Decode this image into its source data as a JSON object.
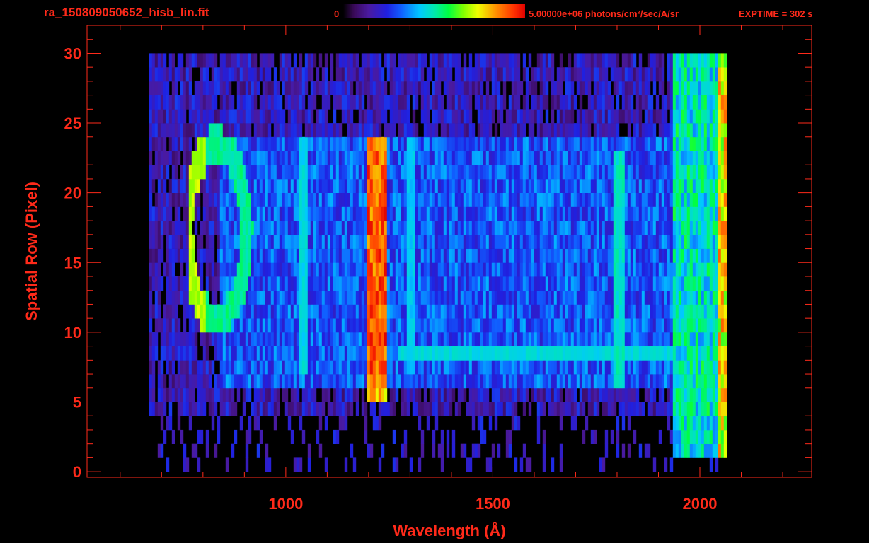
{
  "header": {
    "file_title": "ra_150809050652_hisb_lin.fit",
    "colorbar_min": "0",
    "colorbar_max_label": "5.00000e+06 photons/cm²/sec/A/sr",
    "exptime": "EXPTIME = 302 s"
  },
  "colors": {
    "axis": "#ff2a1a",
    "background": "#000000"
  },
  "chart_data": {
    "type": "heatmap",
    "xlabel": "Wavelength (Å)",
    "ylabel": "Spatial Row (Pixel)",
    "xlim": [
      520,
      2270
    ],
    "ylim": [
      -0.4,
      32
    ],
    "xticks": [
      1000,
      1500,
      2000
    ],
    "yticks": [
      0,
      5,
      10,
      15,
      20,
      25,
      30
    ],
    "colorbar": {
      "min": 0,
      "max": 5000000,
      "unit": "photons/cm²/sec/A/sr",
      "colormap": "rainbow"
    },
    "data_extent": {
      "wavelength_min": 670,
      "wavelength_max": 2060,
      "row_min": 0,
      "row_max": 30
    },
    "features": [
      {
        "name": "Lyman-alpha emission",
        "wavelength": 1216,
        "rows": [
          5,
          24
        ],
        "level": "peak"
      },
      {
        "name": "ring",
        "center_wavelength": 830,
        "center_row": 17,
        "row_span": [
          11,
          24
        ],
        "level": "high"
      },
      {
        "name": "emission line",
        "wavelength": 1040,
        "rows": [
          7,
          24
        ],
        "level": "medium"
      },
      {
        "name": "emission line",
        "wavelength": 1300,
        "rows": [
          7,
          24
        ],
        "level": "medium"
      },
      {
        "name": "emission line",
        "wavelength": 1800,
        "rows": [
          6,
          23
        ],
        "level": "medium"
      },
      {
        "name": "bright row",
        "row": 8,
        "wavelengths": [
          1270,
          1930
        ],
        "level": "medium"
      },
      {
        "name": "detector edge",
        "wavelength": 2050,
        "rows": [
          1,
          30
        ],
        "level": "high"
      }
    ]
  }
}
